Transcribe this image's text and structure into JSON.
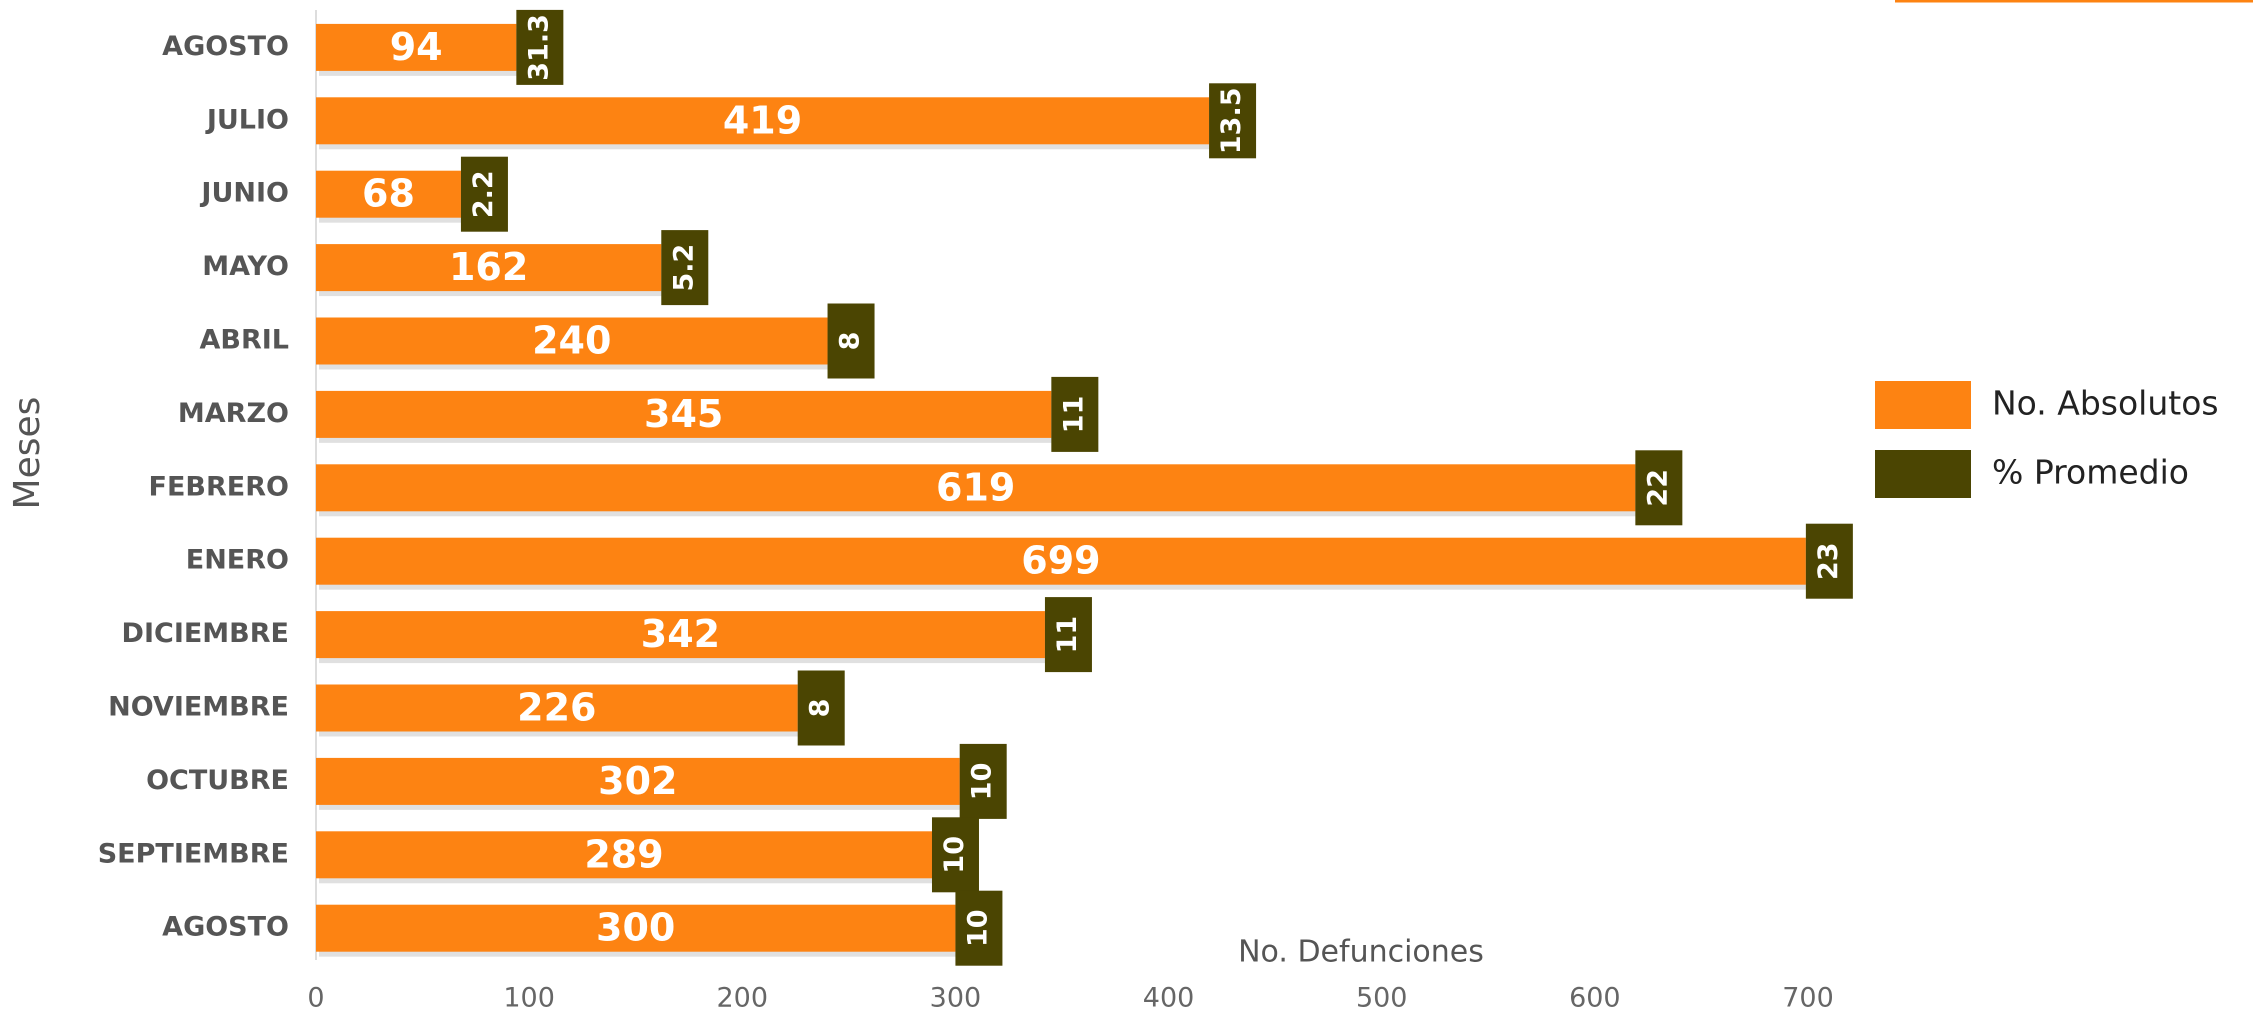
{
  "chart_data": {
    "type": "bar",
    "orientation": "horizontal",
    "categories": [
      "AGOSTO",
      "JULIO",
      "JUNIO",
      "MAYO",
      "ABRIL",
      "MARZO",
      "FEBRERO",
      "ENERO",
      "DICIEMBRE",
      "NOVIEMBRE",
      "OCTUBRE",
      "SEPTIEMBRE",
      "AGOSTO"
    ],
    "series": [
      {
        "name": "No. Absolutos",
        "color": "#fd8312",
        "values": [
          94,
          419,
          68,
          162,
          240,
          345,
          619,
          699,
          342,
          226,
          302,
          289,
          300
        ]
      },
      {
        "name": "% Promedio",
        "color": "#4b4502",
        "values": [
          31.3,
          13.5,
          2.2,
          5.2,
          8,
          11,
          22,
          23,
          11,
          8,
          10,
          10,
          10
        ]
      }
    ],
    "xlabel": "No. Defunciones",
    "ylabel": "Meses",
    "xlim": [
      0,
      700
    ],
    "xticks": [
      0,
      100,
      200,
      300,
      400,
      500,
      600,
      700
    ],
    "legend": "right"
  }
}
